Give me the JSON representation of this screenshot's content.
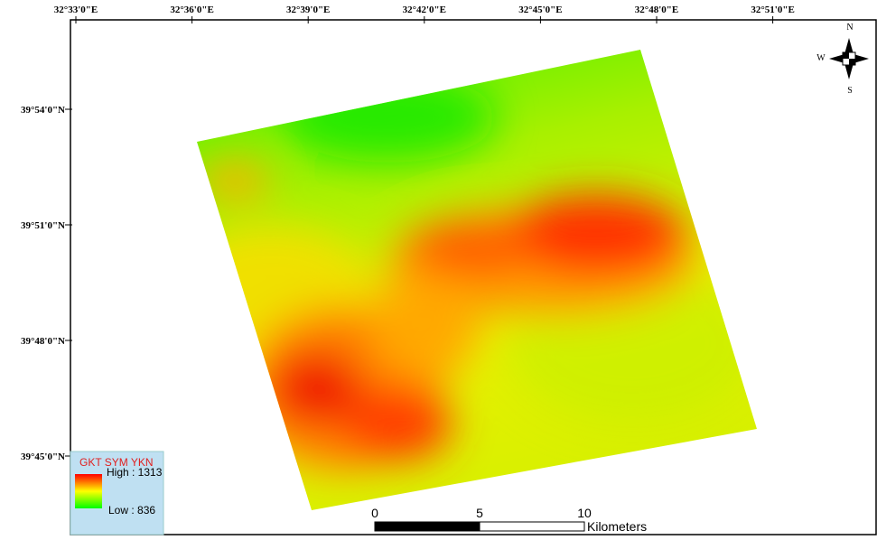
{
  "map": {
    "longitude_labels": [
      "32°33'0\"E",
      "32°36'0\"E",
      "32°39'0\"E",
      "32°42'0\"E",
      "32°45'0\"E",
      "32°48'0\"E",
      "32°51'0\"E"
    ],
    "latitude_labels": [
      "39°54'0\"N",
      "39°51'0\"N",
      "39°48'0\"N",
      "39°45'0\"N"
    ],
    "legend": {
      "title": "GKT SYM YKN",
      "high": "High : 1313",
      "low": "Low : 836"
    },
    "scale_bar": {
      "labels": [
        "0",
        "5",
        "10"
      ],
      "unit": "Kilometers"
    },
    "north_arrow": {
      "n": "N",
      "w": "W",
      "s": "S"
    }
  }
}
